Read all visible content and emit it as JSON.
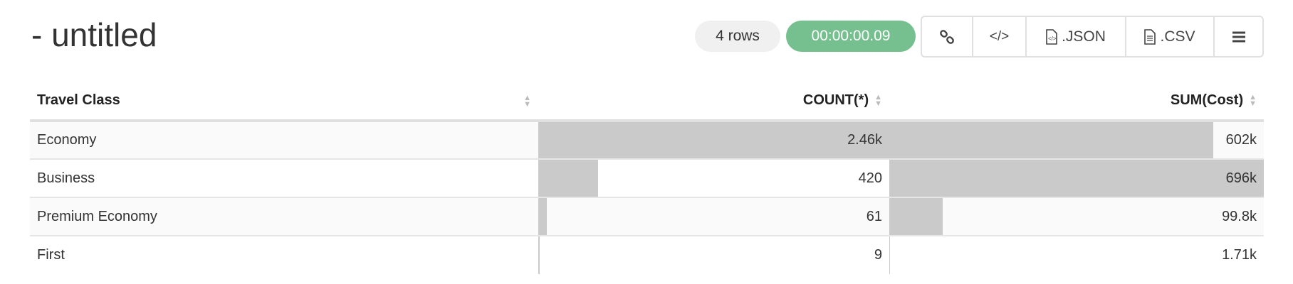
{
  "header": {
    "title": "- untitled",
    "row_count": "4 rows",
    "elapsed": "00:00:00.09"
  },
  "toolbar": {
    "link_icon": "link-icon",
    "embed_icon": "code-icon",
    "json_label": ".JSON",
    "csv_label": ".CSV",
    "menu_icon": "menu-icon"
  },
  "colors": {
    "timer_bg": "#75c08e",
    "bar": "#cacaca"
  },
  "table": {
    "columns": [
      "Travel Class",
      "COUNT(*)",
      "SUM(Cost)"
    ],
    "rows": [
      {
        "class": "Economy",
        "count": "2.46k",
        "sum": "602k",
        "count_value": 2460,
        "sum_value": 602000
      },
      {
        "class": "Business",
        "count": "420",
        "sum": "696k",
        "count_value": 420,
        "sum_value": 696000
      },
      {
        "class": "Premium Economy",
        "count": "61",
        "sum": "99.8k",
        "count_value": 61,
        "sum_value": 99800
      },
      {
        "class": "First",
        "count": "9",
        "sum": "1.71k",
        "count_value": 9,
        "sum_value": 1710
      }
    ]
  }
}
